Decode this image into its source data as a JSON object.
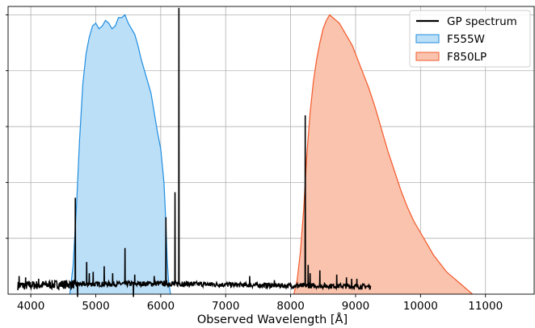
{
  "chart_data": {
    "type": "area",
    "xlabel": "Observed Wavelength [Å]",
    "ylabel": "",
    "xlim": [
      3650,
      11750
    ],
    "ylim": [
      0,
      1.03
    ],
    "x_ticks": [
      4000,
      5000,
      6000,
      7000,
      8000,
      9000,
      10000,
      11000
    ],
    "x_tick_labels": [
      "4000",
      "5000",
      "6000",
      "7000",
      "8000",
      "9000",
      "10000",
      "11000"
    ],
    "y_ticks": [
      0.2,
      0.4,
      0.6,
      0.8,
      1.0
    ],
    "grid": true,
    "legend_position": "top-right",
    "legend": [
      {
        "label": "GP spectrum",
        "kind": "line",
        "color": "#000000"
      },
      {
        "label": "F555W",
        "kind": "fill",
        "color": "#1f8ee0",
        "fill": "#bcdff8"
      },
      {
        "label": "F850LP",
        "kind": "fill",
        "color": "#f4592a",
        "fill": "#f9c3ad"
      }
    ],
    "series": [
      {
        "name": "F555W",
        "kind": "filled-curve",
        "color": "#1f8ee0",
        "fill": "#bcdff8",
        "x": [
          4600,
          4650,
          4700,
          4750,
          4800,
          4850,
          4900,
          4950,
          5000,
          5050,
          5100,
          5150,
          5200,
          5250,
          5300,
          5350,
          5400,
          5450,
          5500,
          5550,
          5600,
          5650,
          5700,
          5750,
          5800,
          5850,
          5900,
          5950,
          6000,
          6050,
          6080,
          6100,
          6120,
          6150
        ],
        "y": [
          0,
          0.1,
          0.3,
          0.55,
          0.75,
          0.86,
          0.92,
          0.96,
          0.97,
          0.95,
          0.96,
          0.98,
          0.97,
          0.95,
          0.96,
          0.99,
          0.99,
          1.0,
          0.97,
          0.95,
          0.93,
          0.89,
          0.84,
          0.8,
          0.76,
          0.72,
          0.65,
          0.58,
          0.52,
          0.4,
          0.25,
          0.12,
          0.05,
          0
        ]
      },
      {
        "name": "F850LP",
        "kind": "filled-curve",
        "color": "#f4592a",
        "fill": "#f9c3ad",
        "x": [
          8050,
          8100,
          8150,
          8200,
          8250,
          8300,
          8350,
          8400,
          8450,
          8500,
          8550,
          8600,
          8650,
          8700,
          8750,
          8800,
          8850,
          8900,
          8950,
          9000,
          9100,
          9200,
          9300,
          9400,
          9500,
          9600,
          9700,
          9800,
          9900,
          10000,
          10100,
          10200,
          10300,
          10400,
          10500,
          10600,
          10700,
          10800
        ],
        "y": [
          0,
          0.05,
          0.15,
          0.3,
          0.5,
          0.65,
          0.76,
          0.84,
          0.9,
          0.95,
          0.98,
          1.0,
          0.99,
          0.98,
          0.97,
          0.95,
          0.93,
          0.91,
          0.89,
          0.86,
          0.8,
          0.74,
          0.67,
          0.59,
          0.51,
          0.44,
          0.37,
          0.31,
          0.26,
          0.22,
          0.18,
          0.14,
          0.11,
          0.08,
          0.06,
          0.04,
          0.02,
          0
        ]
      },
      {
        "name": "GP spectrum",
        "kind": "line",
        "color": "#000000",
        "baseline": {
          "x": [
            3800,
            4000,
            4500,
            5000,
            5500,
            6000,
            6500,
            7000,
            7500,
            8000,
            8500,
            9000,
            9230
          ],
          "y": [
            0.03,
            0.032,
            0.035,
            0.036,
            0.037,
            0.038,
            0.036,
            0.034,
            0.032,
            0.03,
            0.03,
            0.028,
            0.027
          ]
        },
        "lines": [
          {
            "x": 3820,
            "y": 0.065
          },
          {
            "x": 3920,
            "y": 0.06
          },
          {
            "x": 4120,
            "y": 0.055
          },
          {
            "x": 4685,
            "y": 0.345
          },
          {
            "x": 4720,
            "y": -0.01
          },
          {
            "x": 4860,
            "y": 0.115
          },
          {
            "x": 4900,
            "y": 0.075
          },
          {
            "x": 4960,
            "y": 0.08
          },
          {
            "x": 5130,
            "y": 0.1
          },
          {
            "x": 5260,
            "y": 0.075
          },
          {
            "x": 5450,
            "y": 0.165
          },
          {
            "x": 5580,
            "y": -0.01
          },
          {
            "x": 5600,
            "y": 0.07
          },
          {
            "x": 5900,
            "y": 0.065
          },
          {
            "x": 6080,
            "y": 0.275
          },
          {
            "x": 6220,
            "y": 0.365
          },
          {
            "x": 6280,
            "y": 1.025
          },
          {
            "x": 6330,
            "y": 0.045
          },
          {
            "x": 7370,
            "y": 0.065
          },
          {
            "x": 7750,
            "y": 0.05
          },
          {
            "x": 8225,
            "y": 0.64
          },
          {
            "x": 8270,
            "y": 0.105
          },
          {
            "x": 8300,
            "y": 0.075
          },
          {
            "x": 8450,
            "y": 0.085
          },
          {
            "x": 8710,
            "y": 0.07
          },
          {
            "x": 8860,
            "y": 0.06
          },
          {
            "x": 8940,
            "y": 0.055
          },
          {
            "x": 9020,
            "y": 0.055
          }
        ]
      }
    ]
  }
}
